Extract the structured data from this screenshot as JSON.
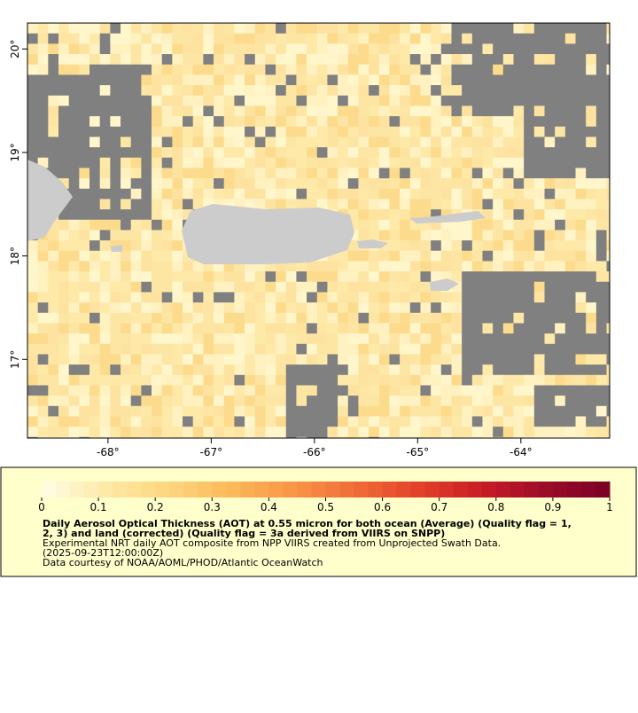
{
  "map": {
    "xlim": [
      -68.78,
      -63.14
    ],
    "ylim": [
      16.24,
      20.25
    ],
    "xticks": [
      {
        "value": -68,
        "label": "-68°"
      },
      {
        "value": -67,
        "label": "-67°"
      },
      {
        "value": -66,
        "label": "-66°"
      },
      {
        "value": -65,
        "label": "-65°"
      },
      {
        "value": -64,
        "label": "-64°"
      }
    ],
    "yticks": [
      {
        "value": 17,
        "label": "17°"
      },
      {
        "value": 18,
        "label": "18°"
      },
      {
        "value": 19,
        "label": "19°"
      },
      {
        "value": 20,
        "label": "20°"
      }
    ],
    "colorbar": {
      "lim": [
        0,
        1
      ],
      "ticks": [
        0,
        0.1,
        0.2,
        0.3,
        0.4,
        0.5,
        0.6,
        0.7,
        0.8,
        0.9,
        1
      ],
      "palette": [
        "#fffde6",
        "#feeaa8",
        "#fdd67f",
        "#fcb95a",
        "#f99447",
        "#f06b36",
        "#e2402a",
        "#c81b26",
        "#9b0b28",
        "#7a0026"
      ]
    },
    "caption": [
      "Daily Aerosol Optical Thickness (AOT) at 0.55 micron for both ocean (Average) (Quality flag = 1,",
      "2, 3) and land (corrected) (Quality flag = 3a derived from VIIRS on SNPP)",
      "Experimental NRT daily AOT composite from NPP VIIRS created from Unprojected Swath Data.",
      "(2025-09-23T12:00:00Z)",
      "Data courtesy of NOAA/AOML/PHOD/Atlantic OceanWatch"
    ]
  }
}
